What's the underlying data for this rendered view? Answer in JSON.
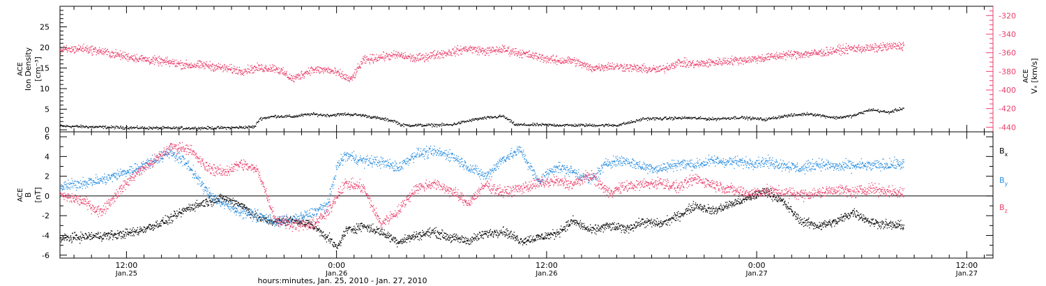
{
  "colors": {
    "black": "#000000",
    "pink": "#ea3f6b",
    "blue": "#2a8ee0"
  },
  "x_axis": {
    "xlabel": "hours:minutes, Jan. 25, 2010 - Jan. 27, 2010",
    "range_hours": [
      8.2,
      61.5
    ],
    "ticks": [
      {
        "hours": 12,
        "time": "12:00",
        "date": "Jan.25"
      },
      {
        "hours": 24,
        "time": "0:00",
        "date": "Jan.26"
      },
      {
        "hours": 36,
        "time": "12:00",
        "date": "Jan.26"
      },
      {
        "hours": 48,
        "time": "0:00",
        "date": "Jan.27"
      },
      {
        "hours": 60,
        "time": "12:00",
        "date": "Jan.27"
      }
    ]
  },
  "chart_data": [
    {
      "type": "scatter",
      "ylabel_left": [
        "ACE",
        "Ion Density",
        "[cm⁻³]"
      ],
      "ylabel_right": [
        "ACE",
        "Vₓ [km/s]"
      ],
      "ylim_left": [
        -0.5,
        30
      ],
      "yticks_left": [
        0,
        5,
        10,
        15,
        20,
        25
      ],
      "ylim_right": [
        -445,
        -310
      ],
      "yticks_right": [
        -440,
        -420,
        -400,
        -380,
        -360,
        -340,
        -320
      ],
      "grid": false,
      "series": [
        {
          "color": "black",
          "axis": "left",
          "x": [
            8.2,
            10,
            12,
            14,
            16,
            18,
            19.3,
            19.6,
            20.5,
            21.5,
            22.5,
            23.5,
            24.5,
            25.5,
            26.5,
            27.3,
            27.7,
            29,
            30.5,
            32,
            33.5,
            34.2,
            35.5,
            37,
            38.5,
            40,
            41.1,
            41.5,
            42.5,
            44,
            45.5,
            47,
            48.5,
            49.5,
            51,
            52.5,
            53.5,
            54.5,
            55.5,
            56.4
          ],
          "y": [
            1.0,
            0.8,
            0.6,
            0.5,
            0.5,
            0.6,
            0.8,
            2.8,
            3.4,
            3.3,
            3.9,
            3.6,
            3.9,
            3.6,
            2.8,
            2.2,
            1.2,
            1.2,
            1.3,
            2.7,
            3.4,
            1.3,
            1.3,
            1.2,
            1.2,
            1.2,
            2.2,
            2.8,
            2.8,
            3.0,
            2.7,
            3.1,
            2.6,
            3.4,
            4.0,
            3.0,
            3.5,
            5.0,
            4.3,
            5.4
          ]
        },
        {
          "color": "pink",
          "axis": "right",
          "x": [
            8.2,
            9.5,
            10.5,
            11.5,
            12.5,
            13.5,
            14.5,
            15.5,
            16.5,
            17.5,
            18.5,
            19.5,
            20.5,
            21.5,
            22.5,
            23.5,
            24.2,
            24.8,
            25.5,
            26.5,
            27.5,
            28.5,
            29.5,
            30.5,
            31.5,
            32.5,
            33.5,
            34.5,
            35.5,
            36.5,
            37.5,
            38.5,
            39.5,
            40.5,
            41.5,
            42.5,
            43.5,
            44.5,
            45.5,
            46.5,
            47.5,
            48.5,
            49.5,
            50.5,
            51.5,
            52.5,
            53.5,
            54.5,
            55.5,
            56.4
          ],
          "y": [
            -357,
            -355,
            -358,
            -362,
            -365,
            -368,
            -370,
            -373,
            -373,
            -376,
            -379,
            -376,
            -376,
            -388,
            -378,
            -378,
            -383,
            -389,
            -368,
            -364,
            -362,
            -366,
            -362,
            -359,
            -355,
            -358,
            -356,
            -360,
            -364,
            -368,
            -368,
            -376,
            -374,
            -375,
            -377,
            -378,
            -370,
            -372,
            -370,
            -368,
            -367,
            -365,
            -362,
            -361,
            -360,
            -357,
            -355,
            -355,
            -353,
            -352
          ]
        }
      ]
    },
    {
      "type": "scatter",
      "ylabel_left": [
        "ACE",
        "B",
        "[nT]"
      ],
      "ylim": [
        -6.3,
        6.5
      ],
      "yticks": [
        -6,
        -4,
        -2,
        0,
        2,
        4,
        6
      ],
      "zero_line": true,
      "grid": false,
      "legend": {
        "placement": "right",
        "entries": [
          {
            "base": "B",
            "sub": "x",
            "color": "black"
          },
          {
            "base": "B",
            "sub": "y",
            "color": "blue"
          },
          {
            "base": "B",
            "sub": "z",
            "color": "pink"
          }
        ]
      },
      "series": [
        {
          "label": "Bx",
          "color": "black",
          "x": [
            8.2,
            9.5,
            10.5,
            11.5,
            12.5,
            13.5,
            14.5,
            15.5,
            16.5,
            17.5,
            18.5,
            19.5,
            20.5,
            21.5,
            22.5,
            23.5,
            24.0,
            24.5,
            25.5,
            26.5,
            27.5,
            28.5,
            29.5,
            30.5,
            31.5,
            32.5,
            33.5,
            34.5,
            35.5,
            36.5,
            37.5,
            38.5,
            39.5,
            40.5,
            41.5,
            42.5,
            43.5,
            44.5,
            45.5,
            46.5,
            47.5,
            48.5,
            49.5,
            50.5,
            51.5,
            52.5,
            53.5,
            54.5,
            55.5,
            56.4
          ],
          "y": [
            -4.3,
            -4.1,
            -4.0,
            -3.9,
            -3.6,
            -3.0,
            -2.3,
            -1.2,
            -0.6,
            -0.2,
            -0.8,
            -2.2,
            -2.6,
            -2.4,
            -2.8,
            -4.2,
            -5.3,
            -3.5,
            -3.0,
            -3.6,
            -4.6,
            -4.0,
            -3.6,
            -4.2,
            -4.5,
            -3.8,
            -3.5,
            -4.5,
            -4.2,
            -3.8,
            -2.5,
            -3.5,
            -3.0,
            -3.3,
            -2.6,
            -2.8,
            -2.0,
            -0.9,
            -1.5,
            -0.8,
            -0.2,
            0.6,
            -0.6,
            -2.5,
            -3.0,
            -2.6,
            -1.6,
            -2.6,
            -2.9,
            -3.0
          ]
        },
        {
          "label": "By",
          "color": "blue",
          "x": [
            8.2,
            9.5,
            10.5,
            11.5,
            12.5,
            13.5,
            14.5,
            15.5,
            16.5,
            17.5,
            18.5,
            19.5,
            20.5,
            21.5,
            22.5,
            23.5,
            24.0,
            24.5,
            25.5,
            26.5,
            27.5,
            28.5,
            29.5,
            30.5,
            31.5,
            32.5,
            33.5,
            34.5,
            35.5,
            36.5,
            37.5,
            38.5,
            39.5,
            40.5,
            41.5,
            42.5,
            43.5,
            44.5,
            45.5,
            46.5,
            47.5,
            48.5,
            49.5,
            50.5,
            51.5,
            52.5,
            53.5,
            54.5,
            55.5,
            56.4
          ],
          "y": [
            0.9,
            1.4,
            1.6,
            2.2,
            2.8,
            3.6,
            4.5,
            3.2,
            0.6,
            -0.8,
            -1.5,
            -2.0,
            -2.6,
            -2.4,
            -1.8,
            -0.8,
            3.0,
            4.2,
            3.6,
            3.5,
            2.9,
            4.3,
            4.5,
            4.2,
            3.0,
            2.0,
            3.8,
            4.7,
            1.5,
            3.0,
            2.5,
            1.6,
            3.5,
            3.6,
            3.0,
            2.8,
            3.3,
            3.2,
            3.6,
            3.5,
            3.4,
            3.5,
            3.2,
            2.8,
            3.3,
            3.0,
            3.1,
            3.1,
            3.2,
            3.3
          ]
        },
        {
          "label": "Bz",
          "color": "pink",
          "x": [
            8.2,
            9.5,
            10.5,
            11.5,
            12.5,
            13.5,
            14.5,
            15.5,
            16.5,
            17.5,
            18.5,
            19.5,
            20.5,
            21.5,
            22.5,
            23.5,
            24.0,
            24.5,
            25.5,
            26.5,
            27.5,
            28.5,
            29.5,
            30.5,
            31.5,
            32.5,
            33.5,
            34.5,
            35.5,
            36.5,
            37.5,
            38.5,
            39.5,
            40.5,
            41.5,
            42.5,
            43.5,
            44.5,
            45.5,
            46.5,
            47.5,
            48.5,
            49.5,
            50.5,
            51.5,
            52.5,
            53.5,
            54.5,
            55.5,
            56.4
          ],
          "y": [
            0.1,
            -0.5,
            -1.6,
            0.4,
            2.3,
            3.5,
            5.0,
            4.9,
            3.0,
            2.4,
            3.3,
            2.6,
            -2.4,
            -2.8,
            -3.0,
            -1.6,
            0.1,
            1.3,
            0.9,
            -2.8,
            -1.5,
            0.8,
            1.3,
            0.6,
            -0.7,
            1.2,
            0.4,
            0.8,
            1.3,
            1.5,
            1.2,
            2.2,
            0.4,
            1.0,
            1.2,
            1.4,
            0.9,
            1.8,
            1.2,
            0.7,
            0.3,
            0.5,
            0.4,
            0.2,
            0.3,
            0.7,
            0.4,
            0.8,
            0.5,
            0.3
          ]
        }
      ]
    }
  ]
}
